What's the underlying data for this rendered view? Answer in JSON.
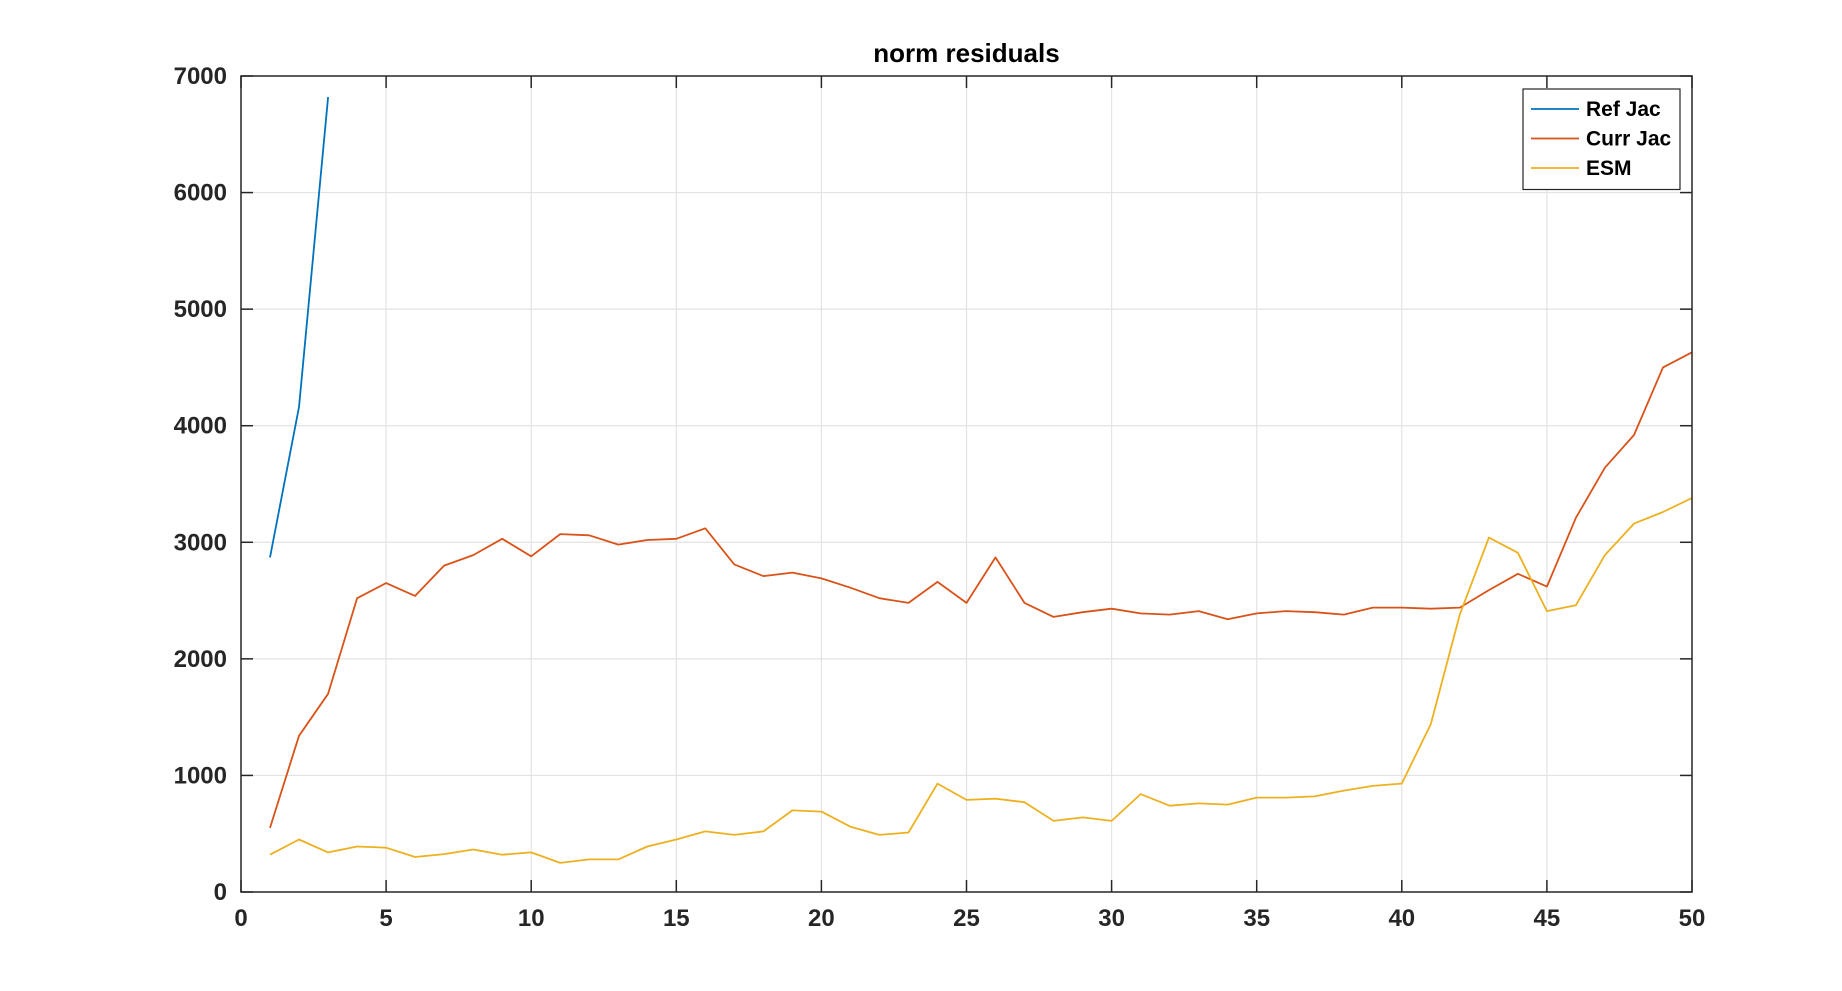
{
  "chart_data": {
    "type": "line",
    "title": "norm residuals",
    "xlabel": "",
    "ylabel": "",
    "xlim": [
      0,
      50
    ],
    "ylim": [
      0,
      7000
    ],
    "xticks": [
      0,
      5,
      10,
      15,
      20,
      25,
      30,
      35,
      40,
      45,
      50
    ],
    "yticks": [
      0,
      1000,
      2000,
      3000,
      4000,
      5000,
      6000,
      7000
    ],
    "grid": true,
    "legend_position": "top-right",
    "series": [
      {
        "name": "Ref Jac",
        "color": "#0072BD",
        "x": [
          1,
          2,
          3
        ],
        "y": [
          2870,
          4160,
          6820
        ]
      },
      {
        "name": "Curr Jac",
        "color": "#D95319",
        "x": [
          1,
          2,
          3,
          4,
          5,
          6,
          7,
          8,
          9,
          10,
          11,
          12,
          13,
          14,
          15,
          16,
          17,
          18,
          19,
          20,
          21,
          22,
          23,
          24,
          25,
          26,
          27,
          28,
          29,
          30,
          31,
          32,
          33,
          34,
          35,
          36,
          37,
          38,
          39,
          40,
          41,
          42,
          43,
          44,
          45,
          46,
          47,
          48,
          49,
          50
        ],
        "y": [
          550,
          1340,
          1700,
          2520,
          2650,
          2540,
          2800,
          2890,
          3030,
          2880,
          3070,
          3060,
          2980,
          3020,
          3030,
          3120,
          2810,
          2710,
          2740,
          2690,
          2610,
          2520,
          2480,
          2660,
          2480,
          2870,
          2480,
          2360,
          2400,
          2430,
          2390,
          2380,
          2410,
          2340,
          2390,
          2410,
          2400,
          2380,
          2440,
          2440,
          2430,
          2440,
          2590,
          2730,
          2620,
          3210,
          3640,
          3920,
          4500,
          4630
        ]
      },
      {
        "name": "ESM",
        "color": "#EDB120",
        "x": [
          1,
          2,
          3,
          4,
          5,
          6,
          7,
          8,
          9,
          10,
          11,
          12,
          13,
          14,
          15,
          16,
          17,
          18,
          19,
          20,
          21,
          22,
          23,
          24,
          25,
          26,
          27,
          28,
          29,
          30,
          31,
          32,
          33,
          34,
          35,
          36,
          37,
          38,
          39,
          40,
          41,
          42,
          43,
          44,
          45,
          46,
          47,
          48,
          49,
          50
        ],
        "y": [
          320,
          450,
          340,
          390,
          380,
          300,
          325,
          365,
          320,
          340,
          250,
          280,
          280,
          390,
          450,
          520,
          490,
          520,
          700,
          690,
          560,
          490,
          510,
          930,
          790,
          800,
          770,
          610,
          640,
          610,
          840,
          740,
          760,
          750,
          810,
          810,
          820,
          870,
          910,
          930,
          1440,
          2380,
          3040,
          2910,
          2410,
          2460,
          2890,
          3160,
          3260,
          3380
        ]
      }
    ]
  }
}
